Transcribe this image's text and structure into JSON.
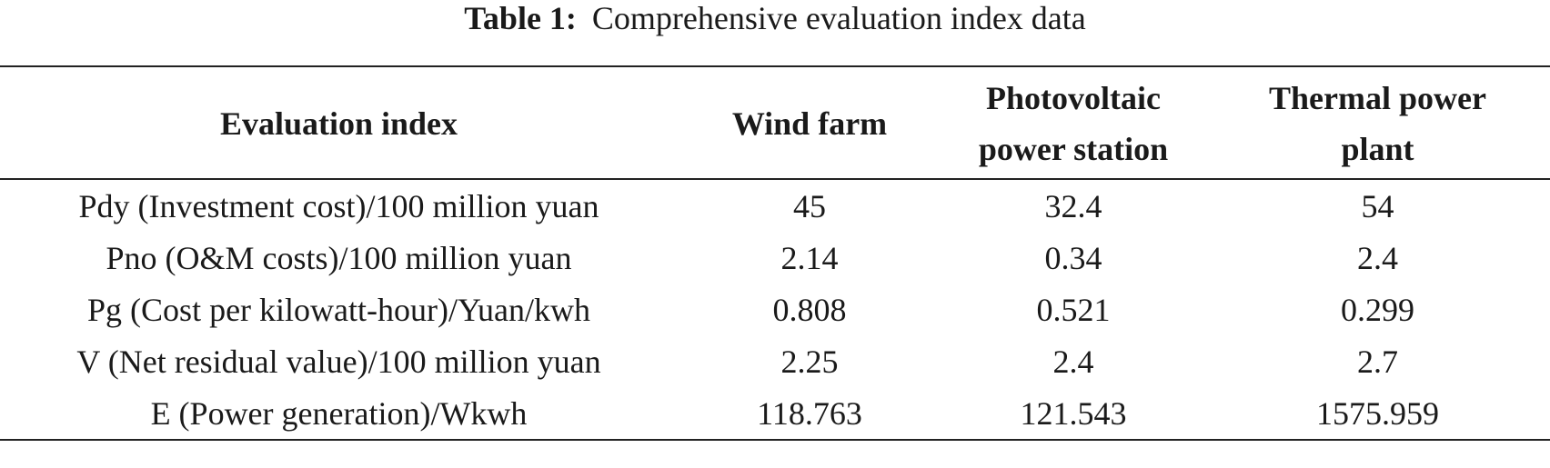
{
  "caption": {
    "label": "Table 1:",
    "text": "Comprehensive evaluation index data"
  },
  "table": {
    "headers": [
      {
        "lines": [
          "Evaluation index"
        ]
      },
      {
        "lines": [
          "Wind farm"
        ]
      },
      {
        "lines": [
          "Photovoltaic",
          "power station"
        ]
      },
      {
        "lines": [
          "Thermal power",
          "plant"
        ]
      }
    ],
    "rows": [
      {
        "index": "Pdy (Investment cost)/100 million yuan",
        "wind": "45",
        "pv": "32.4",
        "thermal": "54"
      },
      {
        "index": "Pno (O&M costs)/100 million yuan",
        "wind": "2.14",
        "pv": "0.34",
        "thermal": "2.4"
      },
      {
        "index": "Pg (Cost per kilowatt-hour)/Yuan/kwh",
        "wind": "0.808",
        "pv": "0.521",
        "thermal": "0.299"
      },
      {
        "index": "V (Net residual value)/100 million yuan",
        "wind": "2.25",
        "pv": "2.4",
        "thermal": "2.7"
      },
      {
        "index": "E (Power generation)/Wkwh",
        "wind": "118.763",
        "pv": "121.543",
        "thermal": "1575.959"
      }
    ]
  }
}
